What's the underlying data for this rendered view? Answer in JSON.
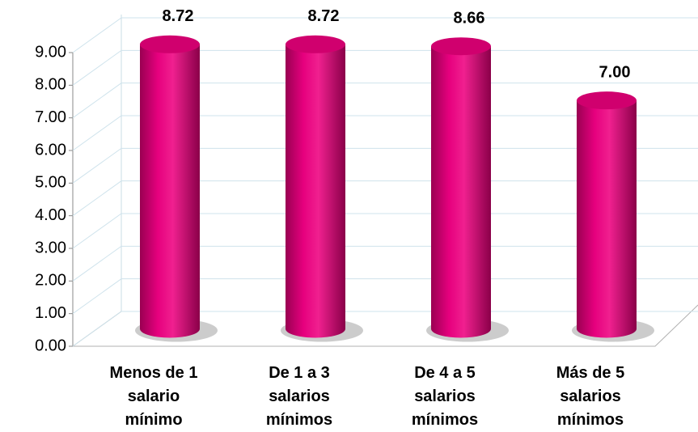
{
  "chart_data": {
    "type": "bar",
    "categories": [
      "Menos de 1 salario mínimo",
      "De 1 a 3 salarios mínimos",
      "De 4 a 5 salarios mínimos",
      "Más de 5 salarios mínimos"
    ],
    "values": [
      8.72,
      8.72,
      8.66,
      7.0
    ],
    "value_labels": [
      "8.72",
      "8.72",
      "8.66",
      "7.00"
    ],
    "color": "#e6007e",
    "ylim": [
      0,
      9
    ],
    "yticks": [
      {
        "value": 0,
        "label": "0.00"
      },
      {
        "value": 1,
        "label": "1.00"
      },
      {
        "value": 2,
        "label": "2.00"
      },
      {
        "value": 3,
        "label": "3.00"
      },
      {
        "value": 4,
        "label": "4.00"
      },
      {
        "value": 5,
        "label": "5.00"
      },
      {
        "value": 6,
        "label": "6.00"
      },
      {
        "value": 7,
        "label": "7.00"
      },
      {
        "value": 8,
        "label": "8.00"
      },
      {
        "value": 9,
        "label": "9.00"
      }
    ],
    "grid": true
  }
}
